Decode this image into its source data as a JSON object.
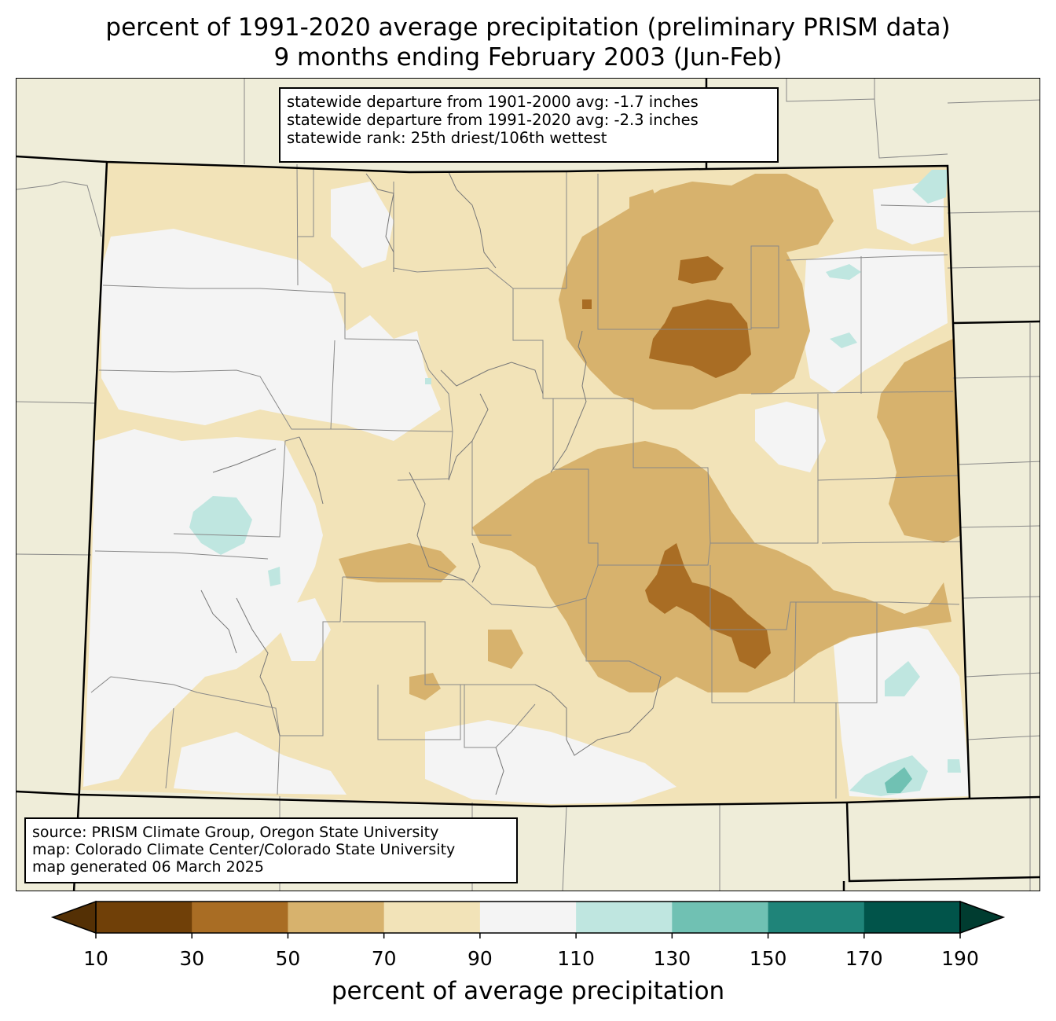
{
  "title": {
    "line1": "percent of 1991-2020 average precipitation (preliminary PRISM data)",
    "line2": "9 months ending February 2003 (Jun-Feb)"
  },
  "stats": {
    "line1": "statewide departure from 1901-2000 avg: -1.7 inches",
    "line2": "statewide departure from 1991-2020 avg: -2.3 inches",
    "line3": "statewide rank: 25th driest/106th wettest"
  },
  "source": {
    "line1": "source: PRISM Climate Group, Oregon State University",
    "line2": "map: Colorado Climate Center/Colorado State University",
    "line3": "map generated 06 March 2025"
  },
  "colorbar": {
    "label": "percent of average precipitation",
    "ticks": [
      "10",
      "30",
      "50",
      "70",
      "90",
      "110",
      "130",
      "150",
      "170",
      "190"
    ],
    "colors": [
      "#704008",
      "#a96d24",
      "#d7b26d",
      "#f2e3b8",
      "#f4f4f4",
      "#bfe6e0",
      "#70c1b3",
      "#1f8479",
      "#01544a"
    ],
    "under_color": "#543005",
    "over_color": "#003c30"
  },
  "map_colors": {
    "background": "#efedd9",
    "ten_thirty": "#704008",
    "thirty_fifty": "#a96d24",
    "fifty_seventy": "#d7b26d",
    "seventy_ninety": "#f2e3b8",
    "ninety_110": "#f4f4f4",
    "one10_130": "#bfe6e0",
    "one30_150": "#70c1b3"
  }
}
